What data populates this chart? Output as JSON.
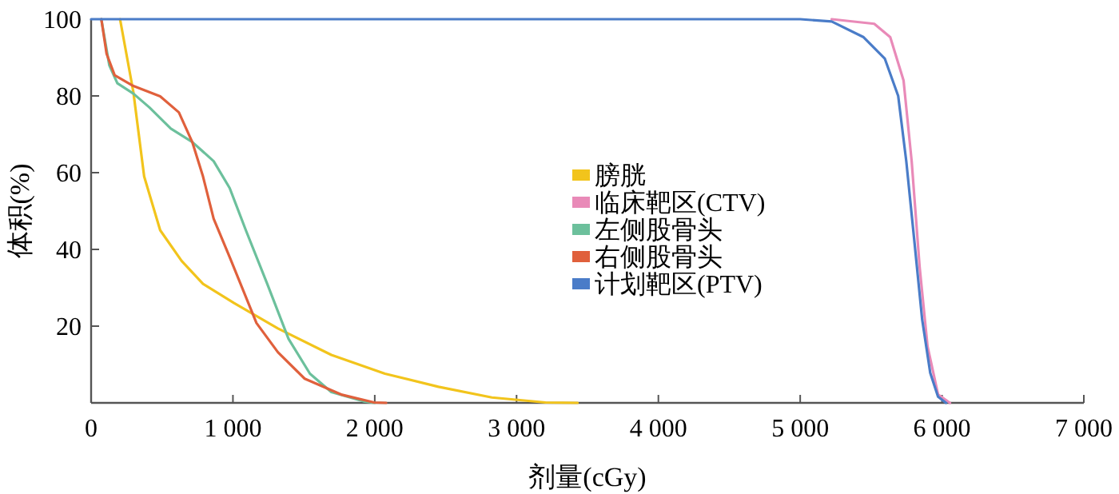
{
  "chart_data": {
    "type": "line",
    "xlabel": "剂量(cGy)",
    "ylabel": "体积(%)",
    "xlim": [
      0,
      7000
    ],
    "ylim": [
      0,
      100
    ],
    "xticks": [
      0,
      {
        "value": 1000,
        "label": "1 000"
      },
      {
        "value": 2000,
        "label": "2 000"
      },
      {
        "value": 3000,
        "label": "3 000"
      },
      {
        "value": 4000,
        "label": "4 000"
      },
      {
        "value": 5000,
        "label": "5 000"
      },
      {
        "value": 6000,
        "label": "6 000"
      },
      {
        "value": 7000,
        "label": "7 000"
      }
    ],
    "yticks": [
      20,
      40,
      60,
      80,
      100
    ],
    "grid": false,
    "legend": "center",
    "marker": "none",
    "line_style": "solid",
    "series": [
      {
        "name": "膀胱",
        "color": "#f2c41c",
        "x": [
          204,
          298,
          374,
          487,
          638,
          789,
          1008,
          1317,
          1694,
          2072,
          2449,
          2826,
          3204,
          3430
        ],
        "values": [
          100,
          81,
          59,
          45,
          37,
          31,
          26,
          19.4,
          12.5,
          7.6,
          4.2,
          1.4,
          0.1,
          0
        ]
      },
      {
        "name": "临床靶区(CTV)",
        "color": "#e98ab8",
        "x": [
          5222,
          5522,
          5635,
          5729,
          5786,
          5842,
          5898,
          5972,
          6056
        ],
        "values": [
          100,
          98.8,
          95.3,
          84,
          63,
          35.5,
          14.7,
          2.2,
          0
        ]
      },
      {
        "name": "左侧股骨头",
        "color": "#6cc09c",
        "x": [
          72,
          128,
          185,
          298,
          411,
          562,
          713,
          864,
          977,
          1091,
          1242,
          1392,
          1543,
          1694,
          1921,
          2000
        ],
        "values": [
          100,
          88,
          83.3,
          80.6,
          77,
          71.5,
          68,
          63,
          56,
          45,
          31,
          16.7,
          7.6,
          2.8,
          0.4,
          0
        ]
      },
      {
        "name": "右侧股骨头",
        "color": "#e0603c",
        "x": [
          72,
          109,
          166,
          298,
          487,
          619,
          713,
          789,
          864,
          977,
          1166,
          1317,
          1506,
          1770,
          1996,
          2080
        ],
        "values": [
          100,
          91,
          85.4,
          82.6,
          79.9,
          75.7,
          68,
          59,
          48,
          38,
          20.8,
          13.2,
          6.3,
          2.1,
          0.1,
          0
        ]
      },
      {
        "name": "计划靶区(PTV)",
        "color": "#4a7cc8",
        "x": [
          0,
          5000,
          5222,
          5447,
          5597,
          5691,
          5748,
          5804,
          5860,
          5917,
          5972,
          6028
        ],
        "values": [
          100,
          100,
          99.4,
          95.3,
          89.7,
          80,
          63,
          42.5,
          21.7,
          7.8,
          1.6,
          0
        ]
      }
    ]
  }
}
